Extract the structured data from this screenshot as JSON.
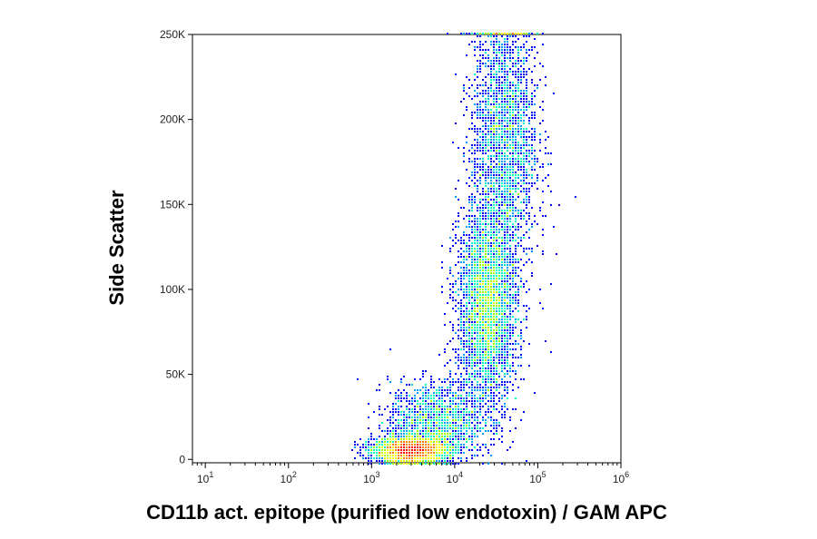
{
  "chart_data": {
    "type": "scatter",
    "title": "",
    "xlabel": "CD11b act. epitope (purified low endotoxin) / GAM APC",
    "ylabel": "Side Scatter",
    "x_scale": "log",
    "xlim": [
      7,
      1000000
    ],
    "ylim": [
      -2000,
      250000
    ],
    "x_ticks": [
      {
        "base": "10",
        "exp": "1"
      },
      {
        "base": "10",
        "exp": "2"
      },
      {
        "base": "10",
        "exp": "3"
      },
      {
        "base": "10",
        "exp": "4"
      },
      {
        "base": "10",
        "exp": "5"
      },
      {
        "base": "10",
        "exp": "6"
      }
    ],
    "y_ticks": [
      "0",
      "50K",
      "100K",
      "150K",
      "200K",
      "250K"
    ],
    "y_tick_values": [
      0,
      50000,
      100000,
      150000,
      200000,
      250000
    ],
    "x_tick_values": [
      10,
      100,
      1000,
      10000,
      100000,
      1000000
    ],
    "grid": false,
    "density_colormap": [
      "#0000ff",
      "#00a0ff",
      "#00ffc0",
      "#a0ff00",
      "#ffff00",
      "#ff8000",
      "#ff0000"
    ],
    "populations": [
      {
        "x_center": 3000,
        "y_center": 5000,
        "x_log_spread": 0.22,
        "y_spread": 4000,
        "count": 3000
      },
      {
        "x_center": 6000,
        "y_center": 22000,
        "x_log_spread": 0.28,
        "y_spread": 12000,
        "count": 1500
      },
      {
        "x_center": 25000,
        "y_center": 90000,
        "x_log_spread": 0.18,
        "y_spread": 30000,
        "count": 3500
      },
      {
        "x_center": 40000,
        "y_center": 190000,
        "x_log_spread": 0.2,
        "y_spread": 40000,
        "count": 2500
      }
    ]
  }
}
